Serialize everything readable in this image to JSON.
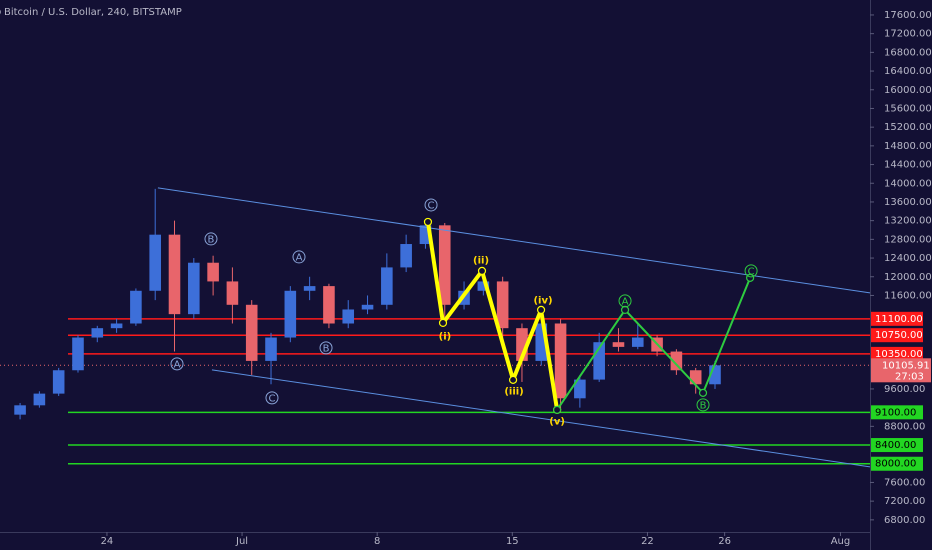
{
  "chart_data": {
    "type": "candlestick",
    "title": "Bitcoin / U.S. Dollar, 240, BITSTAMP",
    "x": [
      19,
      20,
      21,
      22,
      23,
      24,
      25,
      26,
      27,
      28,
      29,
      30,
      31,
      32,
      33,
      34,
      35,
      36,
      37,
      38,
      39,
      40,
      41,
      42,
      43,
      44,
      45,
      46,
      47,
      48,
      49,
      50,
      51,
      52,
      53,
      54,
      55
    ],
    "open": [
      9050,
      9250,
      9500,
      10000,
      10700,
      10900,
      11000,
      11700,
      12900,
      11200,
      12300,
      11900,
      11400,
      10200,
      10700,
      11700,
      11800,
      11000,
      11300,
      11400,
      12200,
      12700,
      13100,
      11400,
      11700,
      11900,
      10900,
      10200,
      11000,
      9400,
      9800,
      10600,
      10500,
      10700,
      10400,
      10000,
      9700
    ],
    "high": [
      9300,
      9550,
      10050,
      10750,
      10950,
      11100,
      11750,
      13880,
      13200,
      12400,
      12450,
      12200,
      11500,
      10800,
      11800,
      12000,
      11850,
      11500,
      11600,
      12500,
      12900,
      13200,
      13150,
      11900,
      12200,
      12000,
      11000,
      11200,
      11100,
      9900,
      10800,
      10900,
      11000,
      10750,
      10450,
      10050,
      10200
    ],
    "low": [
      8950,
      9200,
      9450,
      9950,
      10600,
      10800,
      10950,
      11500,
      10400,
      11100,
      11600,
      11000,
      9900,
      9700,
      10600,
      11500,
      10900,
      10900,
      11200,
      11300,
      12100,
      12600,
      11000,
      11300,
      11600,
      10500,
      9750,
      10100,
      9100,
      9200,
      9750,
      10400,
      10450,
      10300,
      9900,
      9500,
      9600
    ],
    "close": [
      9250,
      9500,
      10000,
      10700,
      10900,
      11000,
      11700,
      12900,
      11200,
      12300,
      11900,
      11400,
      10200,
      10700,
      11700,
      11800,
      11000,
      11300,
      11400,
      12200,
      12700,
      13100,
      11400,
      11700,
      11900,
      10900,
      10200,
      11000,
      9400,
      9800,
      10600,
      10500,
      10700,
      10400,
      10000,
      9700,
      10106
    ],
    "up_color": "#3d6fd9",
    "down_color": "#e8656b",
    "xlim": [
      18.46,
      63.53
    ],
    "xticks": [
      24,
      {
        "value": 31,
        "label": "Jul"
      },
      {
        "value": 38,
        "label": "8"
      },
      {
        "value": 45,
        "label": "15"
      },
      {
        "value": 52,
        "label": "22"
      },
      {
        "value": 56,
        "label": "26"
      },
      {
        "value": 62,
        "label": "Aug"
      }
    ],
    "ylim": [
      6540,
      17920
    ],
    "yticks": [
      {
        "value": 17600,
        "label": "17600.00"
      },
      {
        "value": 17200,
        "label": "17200.00"
      },
      {
        "value": 16800,
        "label": "16800.00"
      },
      {
        "value": 16400,
        "label": "16400.00"
      },
      {
        "value": 16000,
        "label": "16000.00"
      },
      {
        "value": 15600,
        "label": "15600.00"
      },
      {
        "value": 15200,
        "label": "15200.00"
      },
      {
        "value": 14800,
        "label": "14800.00"
      },
      {
        "value": 14400,
        "label": "14400.00"
      },
      {
        "value": 14000,
        "label": "14000.00"
      },
      {
        "value": 13600,
        "label": "13600.00"
      },
      {
        "value": 13200,
        "label": "13200.00"
      },
      {
        "value": 12800,
        "label": "12800.00"
      },
      {
        "value": 12400,
        "label": "12400.00"
      },
      {
        "value": 12000,
        "label": "12000.00"
      },
      {
        "value": 11600,
        "label": "11600.00"
      },
      {
        "value": 9600,
        "label": "9600.00"
      },
      {
        "value": 8800,
        "label": "8800.00"
      },
      {
        "value": 7600,
        "label": "7600.00"
      },
      {
        "value": 7200,
        "label": "7200.00"
      },
      {
        "value": 6800,
        "label": "6800.00"
      }
    ],
    "levels": [
      {
        "value": 11100,
        "label": "11100.00",
        "color": "#ff1a1a",
        "text_color": "#ffffff"
      },
      {
        "value": 10750,
        "label": "10750.00",
        "color": "#ff1a1a",
        "text_color": "#ffffff"
      },
      {
        "value": 10350,
        "label": "10350.00",
        "color": "#ff1a1a",
        "text_color": "#ffffff"
      },
      {
        "value": 9100,
        "label": "9100.00",
        "color": "#22d622",
        "text_color": "#000000"
      },
      {
        "value": 8400,
        "label": "8400.00",
        "color": "#22d622",
        "text_color": "#000000"
      },
      {
        "value": 8000,
        "label": "8000.00",
        "color": "#22d622",
        "text_color": "#000000"
      }
    ],
    "last_price": {
      "value": 10105.91,
      "label": "10105.91",
      "countdown": "27:03",
      "color": "#e8656b"
    },
    "trendlines": [
      {
        "color": "#5b8fe0",
        "width": 1,
        "points": [
          {
            "x": 26.64,
            "y": 13900
          },
          {
            "x": 63.53,
            "y": 11655
          }
        ]
      },
      {
        "color": "#5b8fe0",
        "width": 1,
        "points": [
          {
            "x": 29.44,
            "y": 10008
          },
          {
            "x": 63.53,
            "y": 7934
          }
        ]
      },
      {
        "color": "#ffff00",
        "width": 4,
        "points": [
          {
            "x": 40.63,
            "y": 13173
          },
          {
            "x": 41.41,
            "y": 11013
          },
          {
            "x": 43.43,
            "y": 12125
          },
          {
            "x": 45.04,
            "y": 9794
          },
          {
            "x": 46.49,
            "y": 11291
          },
          {
            "x": 47.32,
            "y": 9153
          }
        ]
      },
      {
        "color": "#2ecc40",
        "width": 2,
        "points": [
          {
            "x": 47.32,
            "y": 9153
          },
          {
            "x": 50.84,
            "y": 11291
          },
          {
            "x": 54.88,
            "y": 9516
          },
          {
            "x": 57.32,
            "y": 11976
          }
        ]
      }
    ],
    "annotations": [
      {
        "text": "A",
        "x": 27.63,
        "y": 10136,
        "color": "#8aa4d8",
        "circle": true
      },
      {
        "text": "B",
        "x": 29.39,
        "y": 12809,
        "color": "#8aa4d8",
        "circle": true
      },
      {
        "text": "C",
        "x": 32.55,
        "y": 9409,
        "color": "#8aa4d8",
        "circle": true
      },
      {
        "text": "A",
        "x": 33.95,
        "y": 12424,
        "color": "#8aa4d8",
        "circle": true
      },
      {
        "text": "B",
        "x": 35.35,
        "y": 10478,
        "color": "#8aa4d8",
        "circle": true
      },
      {
        "text": "C",
        "x": 40.79,
        "y": 13536,
        "color": "#8aa4d8",
        "circle": true
      },
      {
        "text": "(i)",
        "x": 41.51,
        "y": 10735,
        "color": "#ffd700",
        "circle": false
      },
      {
        "text": "(ii)",
        "x": 43.38,
        "y": 12360,
        "color": "#ffd700",
        "circle": false
      },
      {
        "text": "(iii)",
        "x": 45.09,
        "y": 9559,
        "color": "#ffd700",
        "circle": false
      },
      {
        "text": "(iv)",
        "x": 46.59,
        "y": 11505,
        "color": "#ffd700",
        "circle": false
      },
      {
        "text": "(v)",
        "x": 47.32,
        "y": 8917,
        "color": "#ffd700",
        "circle": false
      },
      {
        "text": "A",
        "x": 50.84,
        "y": 11484,
        "color": "#2ecc40",
        "circle": true
      },
      {
        "text": "B",
        "x": 54.88,
        "y": 9260,
        "color": "#2ecc40",
        "circle": true
      },
      {
        "text": "C",
        "x": 57.37,
        "y": 12125,
        "color": "#2ecc40",
        "circle": true
      }
    ]
  }
}
